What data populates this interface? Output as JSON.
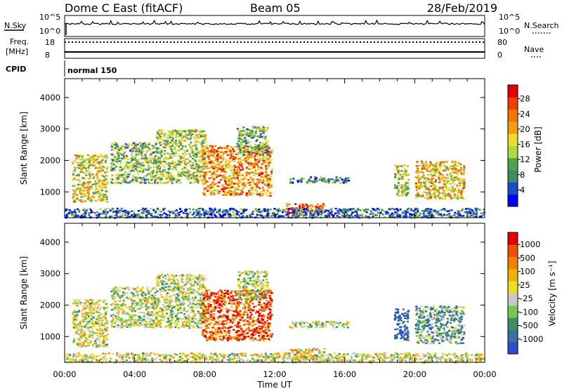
{
  "header": {
    "title": "Dome C East (fitACF)",
    "beam": "Beam 05",
    "date": "28/Feb/2019"
  },
  "panels": {
    "nsky_label": "N.Sky",
    "nsky_tick_top": "10^5",
    "nsky_tick_bottom": "10^0",
    "nsearch_label": "N.Search",
    "freq_label_line1": "Freq.",
    "freq_label_line2": "[MHz]",
    "freq_tick_top": "18",
    "freq_tick_bottom": "8",
    "nave_tick_top": "80",
    "nave_tick_bottom": "0",
    "nave_label": "Nave",
    "cpid_label": "CPID",
    "cpid_value": "normal 150"
  },
  "chart_data": [
    {
      "type": "heatmap",
      "ylabel": "Slant Range [km]",
      "xlabel": "Time UT",
      "x_ticks": [
        "00:00",
        "04:00",
        "08:00",
        "12:00",
        "16:00",
        "20:00",
        "00:00"
      ],
      "y_ticks": [
        "1000",
        "2000",
        "3000",
        "4000"
      ],
      "ylim": [
        180,
        4600
      ],
      "xlim_hours": [
        0,
        24
      ],
      "colorbar": {
        "label": "Power [dB]",
        "ticks": [
          "4",
          "8",
          "12",
          "16",
          "20",
          "24",
          "28"
        ],
        "colors": [
          "#0000ff",
          "#1e4cc8",
          "#3c8c64",
          "#50a050",
          "#aadc3c",
          "#f0dc28",
          "#f0a010",
          "#f07800",
          "#f04000",
          "#e60000"
        ]
      },
      "regions": [
        {
          "t0": 0.4,
          "t1": 2.4,
          "r0": 700,
          "r1": 2200,
          "level": 0.55
        },
        {
          "t0": 2.6,
          "t1": 5.2,
          "r0": 1300,
          "r1": 2600,
          "level": 0.4
        },
        {
          "t0": 5.2,
          "t1": 8.0,
          "r0": 1300,
          "r1": 3000,
          "level": 0.45
        },
        {
          "t0": 7.8,
          "t1": 11.8,
          "r0": 900,
          "r1": 2500,
          "level": 0.7
        },
        {
          "t0": 9.8,
          "t1": 11.6,
          "r0": 2200,
          "r1": 3100,
          "level": 0.4
        },
        {
          "t0": 12.6,
          "t1": 14.8,
          "r0": 300,
          "r1": 650,
          "level": 0.85
        },
        {
          "t0": 12.8,
          "t1": 16.2,
          "r0": 1300,
          "r1": 1500,
          "level": 0.25
        },
        {
          "t0": 18.8,
          "t1": 19.6,
          "r0": 900,
          "r1": 1900,
          "level": 0.45
        },
        {
          "t0": 20.0,
          "t1": 22.8,
          "r0": 800,
          "r1": 2000,
          "level": 0.6
        },
        {
          "t0": 0.0,
          "t1": 24.0,
          "r0": 200,
          "r1": 500,
          "level": 0.2
        }
      ]
    },
    {
      "type": "heatmap",
      "ylabel": "Slant Range [km]",
      "xlabel": "Time UT",
      "x_ticks": [
        "00:00",
        "04:00",
        "08:00",
        "12:00",
        "16:00",
        "20:00",
        "00:00"
      ],
      "y_ticks": [
        "1000",
        "2000",
        "3000",
        "4000"
      ],
      "ylim": [
        180,
        4600
      ],
      "xlim_hours": [
        0,
        24
      ],
      "colorbar": {
        "label": "Velocity [m s⁻¹]",
        "ticks": [
          "1000",
          "500",
          "100",
          "25",
          "-25",
          "-100",
          "-500",
          "-1000"
        ],
        "colors": [
          "#2850c8",
          "#3c6ea0",
          "#3c8c64",
          "#78c850",
          "#c8c8c8",
          "#f0dc28",
          "#f0b400",
          "#f08200",
          "#f05000",
          "#e60000"
        ]
      },
      "regions": [
        {
          "t0": 0.4,
          "t1": 2.4,
          "r0": 700,
          "r1": 2200,
          "level": 0.5
        },
        {
          "t0": 2.6,
          "t1": 5.2,
          "r0": 1300,
          "r1": 2600,
          "level": 0.45
        },
        {
          "t0": 5.2,
          "t1": 8.0,
          "r0": 1300,
          "r1": 3000,
          "level": 0.45
        },
        {
          "t0": 7.8,
          "t1": 11.8,
          "r0": 900,
          "r1": 2500,
          "level": 0.85
        },
        {
          "t0": 9.8,
          "t1": 11.6,
          "r0": 2200,
          "r1": 3100,
          "level": 0.45
        },
        {
          "t0": 12.6,
          "t1": 14.8,
          "r0": 300,
          "r1": 650,
          "level": 0.6
        },
        {
          "t0": 12.8,
          "t1": 16.2,
          "r0": 1300,
          "r1": 1500,
          "level": 0.45
        },
        {
          "t0": 18.8,
          "t1": 19.6,
          "r0": 900,
          "r1": 1900,
          "level": 0.05
        },
        {
          "t0": 20.0,
          "t1": 22.8,
          "r0": 800,
          "r1": 2000,
          "level": 0.3
        },
        {
          "t0": 0.0,
          "t1": 24.0,
          "r0": 200,
          "r1": 500,
          "level": 0.5
        }
      ]
    }
  ]
}
